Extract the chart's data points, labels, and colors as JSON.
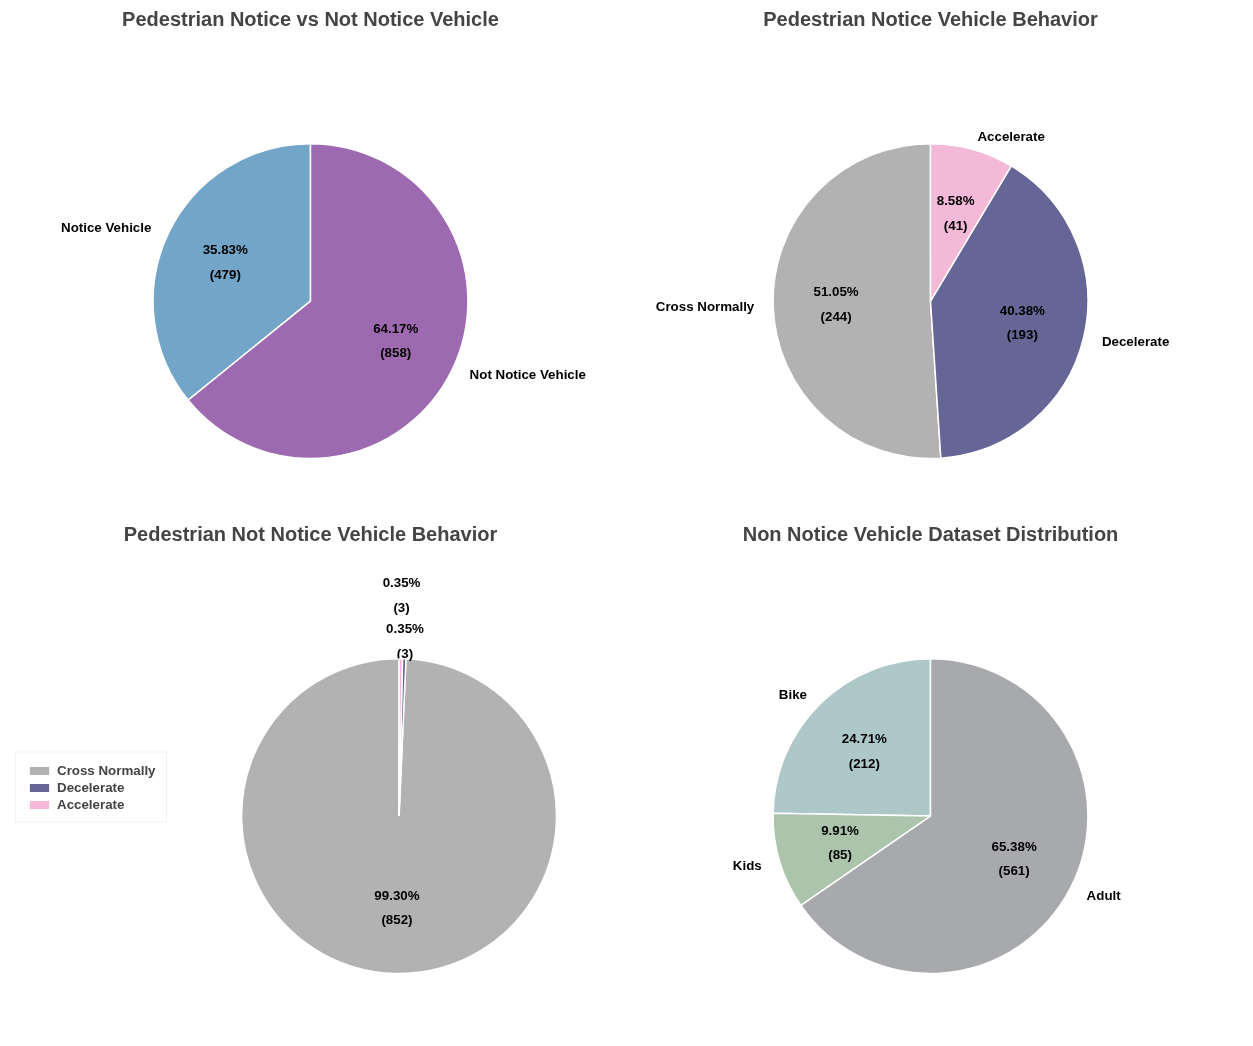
{
  "chart_data": [
    {
      "type": "pie",
      "title": "Pedestrian Notice vs Not Notice Vehicle",
      "categories": [
        "Notice Vehicle",
        "Not Notice Vehicle"
      ],
      "values": [
        479,
        858
      ],
      "colors": [
        "#73a5c8",
        "#9d69b0"
      ],
      "value_labels": [
        "35.83%\n(479)",
        "64.17%\n(858)"
      ],
      "legend": false
    },
    {
      "type": "pie",
      "title": "Pedestrian Notice Vehicle Behavior",
      "categories": [
        "Cross Normally",
        "Decelerate",
        "Accelerate"
      ],
      "values": [
        244,
        193,
        41
      ],
      "colors": [
        "#b2b2b2",
        "#656695",
        "#f4b8d8"
      ],
      "value_labels": [
        "51.05%\n(244)",
        "40.38%\n(193)",
        "8.58%\n(41)"
      ],
      "legend": false
    },
    {
      "type": "pie",
      "title": "Pedestrian Not Notice Vehicle Behavior",
      "categories": [
        "Cross Normally",
        "Decelerate",
        "Accelerate"
      ],
      "values": [
        852,
        3,
        3
      ],
      "colors": [
        "#b2b2b2",
        "#656695",
        "#f4b8d8"
      ],
      "value_labels": [
        "99.30%\n(852)",
        "0.35%\n(3)",
        "0.35%\n(3)"
      ],
      "legend": "left"
    },
    {
      "type": "pie",
      "title": "Non Notice Vehicle Dataset Distribution",
      "categories": [
        "Bike",
        "Kids",
        "Adult"
      ],
      "values": [
        212,
        85,
        561
      ],
      "colors": [
        "#aec7c8",
        "#abc4ab",
        "#a8a9ad"
      ],
      "value_labels": [
        "24.71%\n(212)",
        "9.91%\n(85)",
        "65.38%\n(561)"
      ],
      "legend": false
    }
  ]
}
